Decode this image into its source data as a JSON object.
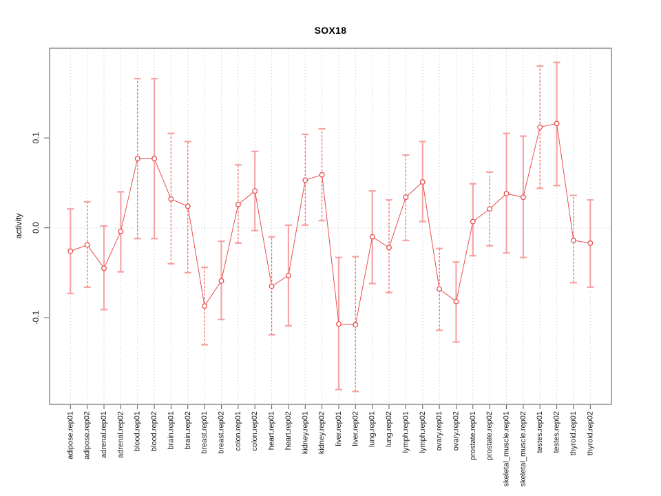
{
  "figure": {
    "title": "SOX18",
    "ylabel": "activity"
  },
  "chart_data": {
    "type": "scatter",
    "title": "SOX18",
    "xlabel": "",
    "ylabel": "activity",
    "ylim": [
      -0.196,
      0.2
    ],
    "yticks": [
      -0.1,
      0.0,
      0.1
    ],
    "grid": "dotted vertical line per category; dotted horizontal line at y=0",
    "legend_position": "none",
    "marker": "open-circle",
    "error_bars": true,
    "categories": [
      "adipose.rep01",
      "adipose.rep02",
      "adrenal.rep01",
      "adrenal.rep02",
      "blood.rep01",
      "blood.rep02",
      "brain.rep01",
      "brain.rep02",
      "breast.rep01",
      "breast.rep02",
      "colon.rep01",
      "colon.rep02",
      "heart.rep01",
      "heart.rep02",
      "kidney.rep01",
      "kidney.rep02",
      "liver.rep01",
      "liver.rep02",
      "lung.rep01",
      "lung.rep02",
      "lymph.rep01",
      "lymph.rep02",
      "ovary.rep01",
      "ovary.rep02",
      "prostate.rep01",
      "prostate.rep02",
      "skeletal_muscle.rep01",
      "skeletal_muscle.rep02",
      "testes.rep01",
      "testes.rep02",
      "thyroid.rep01",
      "thyroid.rep02"
    ],
    "series": [
      {
        "name": "activity",
        "values": [
          -0.026,
          -0.019,
          -0.045,
          -0.004,
          0.077,
          0.077,
          0.032,
          0.024,
          -0.087,
          -0.059,
          0.026,
          0.041,
          -0.065,
          -0.053,
          0.053,
          0.059,
          -0.107,
          -0.108,
          -0.01,
          -0.022,
          0.034,
          0.051,
          -0.068,
          -0.082,
          0.007,
          0.021,
          0.038,
          0.034,
          0.112,
          0.116,
          -0.014,
          -0.017
        ],
        "ci_low": [
          -0.073,
          -0.066,
          -0.091,
          -0.049,
          -0.012,
          -0.012,
          -0.04,
          -0.05,
          -0.13,
          -0.102,
          -0.017,
          -0.003,
          -0.119,
          -0.109,
          0.003,
          0.008,
          -0.18,
          -0.182,
          -0.062,
          -0.072,
          -0.014,
          0.007,
          -0.114,
          -0.127,
          -0.031,
          -0.02,
          -0.028,
          -0.033,
          0.044,
          0.047,
          -0.061,
          -0.066
        ],
        "ci_high": [
          0.021,
          0.029,
          0.002,
          0.04,
          0.166,
          0.166,
          0.105,
          0.096,
          -0.044,
          -0.015,
          0.07,
          0.085,
          -0.01,
          0.003,
          0.104,
          0.11,
          -0.033,
          -0.032,
          0.041,
          0.031,
          0.081,
          0.096,
          -0.023,
          -0.038,
          0.049,
          0.062,
          0.105,
          0.102,
          0.18,
          0.184,
          0.036,
          0.031
        ],
        "bar_dashed": [
          false,
          true,
          false,
          false,
          true,
          false,
          true,
          true,
          true,
          false,
          true,
          false,
          true,
          false,
          true,
          true,
          false,
          true,
          false,
          true,
          true,
          false,
          true,
          false,
          false,
          true,
          false,
          false,
          true,
          false,
          true,
          false
        ]
      }
    ],
    "colors": {
      "point_stroke": "#e84c4c",
      "series_line": "#e84c4c",
      "error_bar_solid": "#f7a4a4",
      "error_bar_dashed": "#ec5a5a",
      "error_bar_cap": "#f7a0a0",
      "grid_line": "#cfcfcf",
      "frame": "#8c8c8c",
      "tick": "#555555",
      "tick_label": "#1a1a1a"
    }
  }
}
